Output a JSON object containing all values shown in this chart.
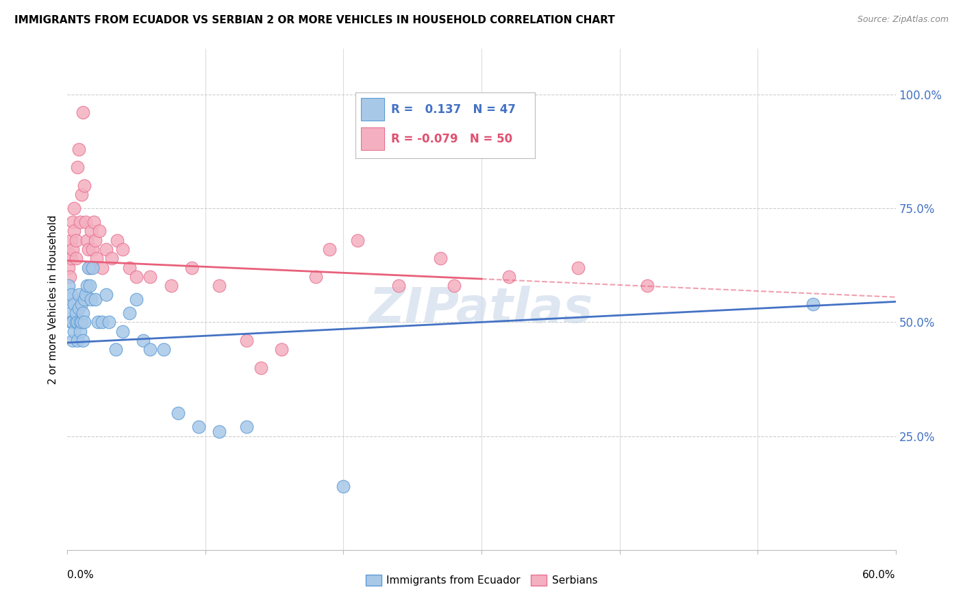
{
  "title": "IMMIGRANTS FROM ECUADOR VS SERBIAN 2 OR MORE VEHICLES IN HOUSEHOLD CORRELATION CHART",
  "source": "Source: ZipAtlas.com",
  "ylabel": "2 or more Vehicles in Household",
  "right_yticks": [
    "100.0%",
    "75.0%",
    "50.0%",
    "25.0%"
  ],
  "right_ytick_vals": [
    1.0,
    0.75,
    0.5,
    0.25
  ],
  "xmin": 0.0,
  "xmax": 0.6,
  "ymin": 0.0,
  "ymax": 1.1,
  "color_ecuador": "#a8c8e8",
  "color_serbian": "#f4b0c0",
  "color_ecuador_edge": "#5b9bd5",
  "color_serbian_edge": "#e87090",
  "color_line_ecuador": "#4472c4",
  "color_line_serbian": "#e8607a",
  "ecuador_label": "Immigrants from Ecuador",
  "serbian_label": "Serbians",
  "line_ecuador_x0": 0.0,
  "line_ecuador_y0": 0.455,
  "line_ecuador_x1": 0.6,
  "line_ecuador_y1": 0.545,
  "line_serbian_x0": 0.0,
  "line_serbian_y0": 0.635,
  "line_serbian_x1": 0.6,
  "line_serbian_y1": 0.555,
  "line_serbian_solid_end": 0.3,
  "ecuador_scatter_x": [
    0.001,
    0.002,
    0.002,
    0.003,
    0.003,
    0.004,
    0.004,
    0.005,
    0.005,
    0.006,
    0.006,
    0.007,
    0.007,
    0.008,
    0.008,
    0.009,
    0.009,
    0.01,
    0.01,
    0.011,
    0.011,
    0.012,
    0.012,
    0.013,
    0.014,
    0.015,
    0.016,
    0.017,
    0.018,
    0.02,
    0.022,
    0.025,
    0.028,
    0.03,
    0.035,
    0.04,
    0.045,
    0.05,
    0.055,
    0.06,
    0.07,
    0.08,
    0.095,
    0.11,
    0.13,
    0.2,
    0.54
  ],
  "ecuador_scatter_y": [
    0.58,
    0.55,
    0.52,
    0.5,
    0.56,
    0.46,
    0.5,
    0.48,
    0.54,
    0.5,
    0.52,
    0.5,
    0.46,
    0.53,
    0.56,
    0.5,
    0.48,
    0.54,
    0.5,
    0.52,
    0.46,
    0.5,
    0.55,
    0.56,
    0.58,
    0.62,
    0.58,
    0.55,
    0.62,
    0.55,
    0.5,
    0.5,
    0.56,
    0.5,
    0.44,
    0.48,
    0.52,
    0.55,
    0.46,
    0.44,
    0.44,
    0.3,
    0.27,
    0.26,
    0.27,
    0.14,
    0.54
  ],
  "serbian_scatter_x": [
    0.001,
    0.002,
    0.002,
    0.003,
    0.003,
    0.004,
    0.004,
    0.005,
    0.005,
    0.006,
    0.006,
    0.007,
    0.008,
    0.009,
    0.01,
    0.011,
    0.012,
    0.013,
    0.014,
    0.015,
    0.016,
    0.017,
    0.018,
    0.019,
    0.02,
    0.021,
    0.023,
    0.025,
    0.028,
    0.032,
    0.036,
    0.04,
    0.045,
    0.05,
    0.06,
    0.075,
    0.09,
    0.11,
    0.13,
    0.155,
    0.18,
    0.21,
    0.24,
    0.28,
    0.32,
    0.37,
    0.42,
    0.14,
    0.19,
    0.27
  ],
  "serbian_scatter_y": [
    0.62,
    0.65,
    0.6,
    0.64,
    0.68,
    0.66,
    0.72,
    0.7,
    0.75,
    0.64,
    0.68,
    0.84,
    0.88,
    0.72,
    0.78,
    0.96,
    0.8,
    0.72,
    0.68,
    0.66,
    0.62,
    0.7,
    0.66,
    0.72,
    0.68,
    0.64,
    0.7,
    0.62,
    0.66,
    0.64,
    0.68,
    0.66,
    0.62,
    0.6,
    0.6,
    0.58,
    0.62,
    0.58,
    0.46,
    0.44,
    0.6,
    0.68,
    0.58,
    0.58,
    0.6,
    0.62,
    0.58,
    0.4,
    0.66,
    0.64
  ],
  "watermark": "ZIPatlas",
  "watermark_color": "#c8d8e8"
}
